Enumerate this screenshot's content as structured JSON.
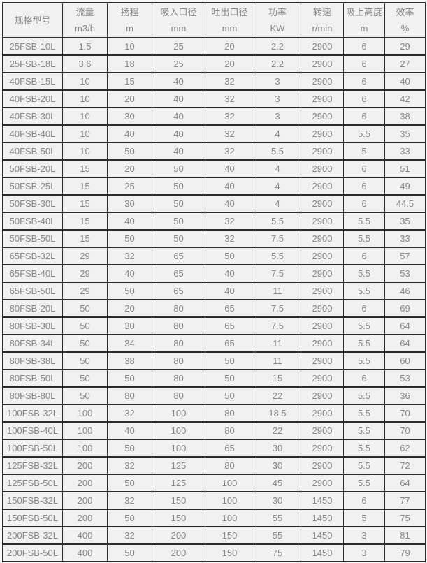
{
  "table": {
    "columns": [
      {
        "id": "model",
        "title": "规格型号",
        "unit": ""
      },
      {
        "id": "flow",
        "title": "流量",
        "unit": "m3/h"
      },
      {
        "id": "head",
        "title": "扬程",
        "unit": "m"
      },
      {
        "id": "suction_diameter",
        "title": "吸入口径",
        "unit": "mm"
      },
      {
        "id": "discharge_diameter",
        "title": "吐出口径",
        "unit": "mm"
      },
      {
        "id": "power",
        "title": "功率",
        "unit": "KW"
      },
      {
        "id": "speed",
        "title": "转速",
        "unit": "r/min"
      },
      {
        "id": "suction_lift",
        "title": "吸上高度",
        "unit": "m"
      },
      {
        "id": "efficiency",
        "title": "效率",
        "unit": "%"
      }
    ],
    "rows": [
      [
        "25FSB-10L",
        "1.5",
        "10",
        "25",
        "20",
        "2.2",
        "2900",
        "6",
        "29"
      ],
      [
        "25FSB-18L",
        "3.6",
        "18",
        "25",
        "20",
        "2.2",
        "2900",
        "6",
        "27"
      ],
      [
        "40FSB-15L",
        "10",
        "15",
        "40",
        "32",
        "3",
        "2900",
        "6",
        "40"
      ],
      [
        "40FSB-20L",
        "10",
        "20",
        "40",
        "32",
        "3",
        "2900",
        "6",
        "42"
      ],
      [
        "40FSB-30L",
        "10",
        "30",
        "40",
        "32",
        "3",
        "2900",
        "6",
        "38"
      ],
      [
        "40FSB-40L",
        "10",
        "40",
        "40",
        "32",
        "4",
        "2900",
        "5.5",
        "35"
      ],
      [
        "40FSB-50L",
        "10",
        "50",
        "40",
        "32",
        "5.5",
        "2900",
        "5",
        "33"
      ],
      [
        "50FSB-20L",
        "15",
        "20",
        "50",
        "40",
        "4",
        "2900",
        "6",
        "51"
      ],
      [
        "50FSB-25L",
        "15",
        "25",
        "50",
        "40",
        "4",
        "2900",
        "6",
        "49"
      ],
      [
        "50FSB-30L",
        "15",
        "30",
        "50",
        "40",
        "4",
        "2900",
        "6",
        "44.5"
      ],
      [
        "50FSB-40L",
        "15",
        "40",
        "50",
        "32",
        "5.5",
        "2900",
        "5.5",
        "35"
      ],
      [
        "50FSB-50L",
        "15",
        "50",
        "50",
        "32",
        "7.5",
        "2900",
        "5.5",
        "33"
      ],
      [
        "65FSB-32L",
        "29",
        "32",
        "65",
        "50",
        "5.5",
        "2900",
        "6",
        "57"
      ],
      [
        "65FSB-40L",
        "29",
        "40",
        "65",
        "40",
        "7.5",
        "2900",
        "5.5",
        "53"
      ],
      [
        "65FSB-50L",
        "29",
        "50",
        "65",
        "40",
        "11",
        "2900",
        "5.5",
        "46"
      ],
      [
        "80FSB-20L",
        "50",
        "20",
        "80",
        "65",
        "7.5",
        "2900",
        "6",
        "69"
      ],
      [
        "80FSB-30L",
        "50",
        "30",
        "80",
        "65",
        "7.5",
        "2900",
        "5.5",
        "64"
      ],
      [
        "80FSB-34L",
        "50",
        "34",
        "80",
        "65",
        "11",
        "2900",
        "5.5",
        "64"
      ],
      [
        "80FSB-38L",
        "50",
        "38",
        "80",
        "50",
        "11",
        "2900",
        "5.5",
        "60"
      ],
      [
        "80FSB-50L",
        "50",
        "50",
        "80",
        "50",
        "15",
        "2900",
        "6",
        "53"
      ],
      [
        "80FSB-80L",
        "50",
        "80",
        "80",
        "50",
        "22",
        "2900",
        "5.5",
        "36"
      ],
      [
        "100FSB-32L",
        "100",
        "32",
        "100",
        "80",
        "18.5",
        "2900",
        "5.5",
        "70"
      ],
      [
        "100FSB-40L",
        "100",
        "40",
        "100",
        "80",
        "22",
        "2900",
        "5.5",
        "70"
      ],
      [
        "100FSB-50L",
        "100",
        "50",
        "100",
        "65",
        "30",
        "2900",
        "5.5",
        "62"
      ],
      [
        "125FSB-32L",
        "200",
        "32",
        "125",
        "80",
        "30",
        "2900",
        "5.5",
        "72"
      ],
      [
        "125FSB-50L",
        "200",
        "50",
        "125",
        "100",
        "45",
        "2900",
        "5.5",
        "64"
      ],
      [
        "150FSB-32L",
        "200",
        "32",
        "150",
        "100",
        "30",
        "1450",
        "6",
        "77"
      ],
      [
        "150FSB-50L",
        "200",
        "50",
        "150",
        "100",
        "55",
        "1450",
        "5",
        "75"
      ],
      [
        "200FSB-32L",
        "400",
        "32",
        "200",
        "150",
        "55",
        "1450",
        "3",
        "81"
      ],
      [
        "200FSB-50L",
        "400",
        "50",
        "200",
        "150",
        "75",
        "1450",
        "3",
        "79"
      ]
    ]
  },
  "colors": {
    "cell_background": "#f1f1f1",
    "border": "#2c2c2c",
    "text": "#878787",
    "page_background": "#f7f7f7"
  }
}
